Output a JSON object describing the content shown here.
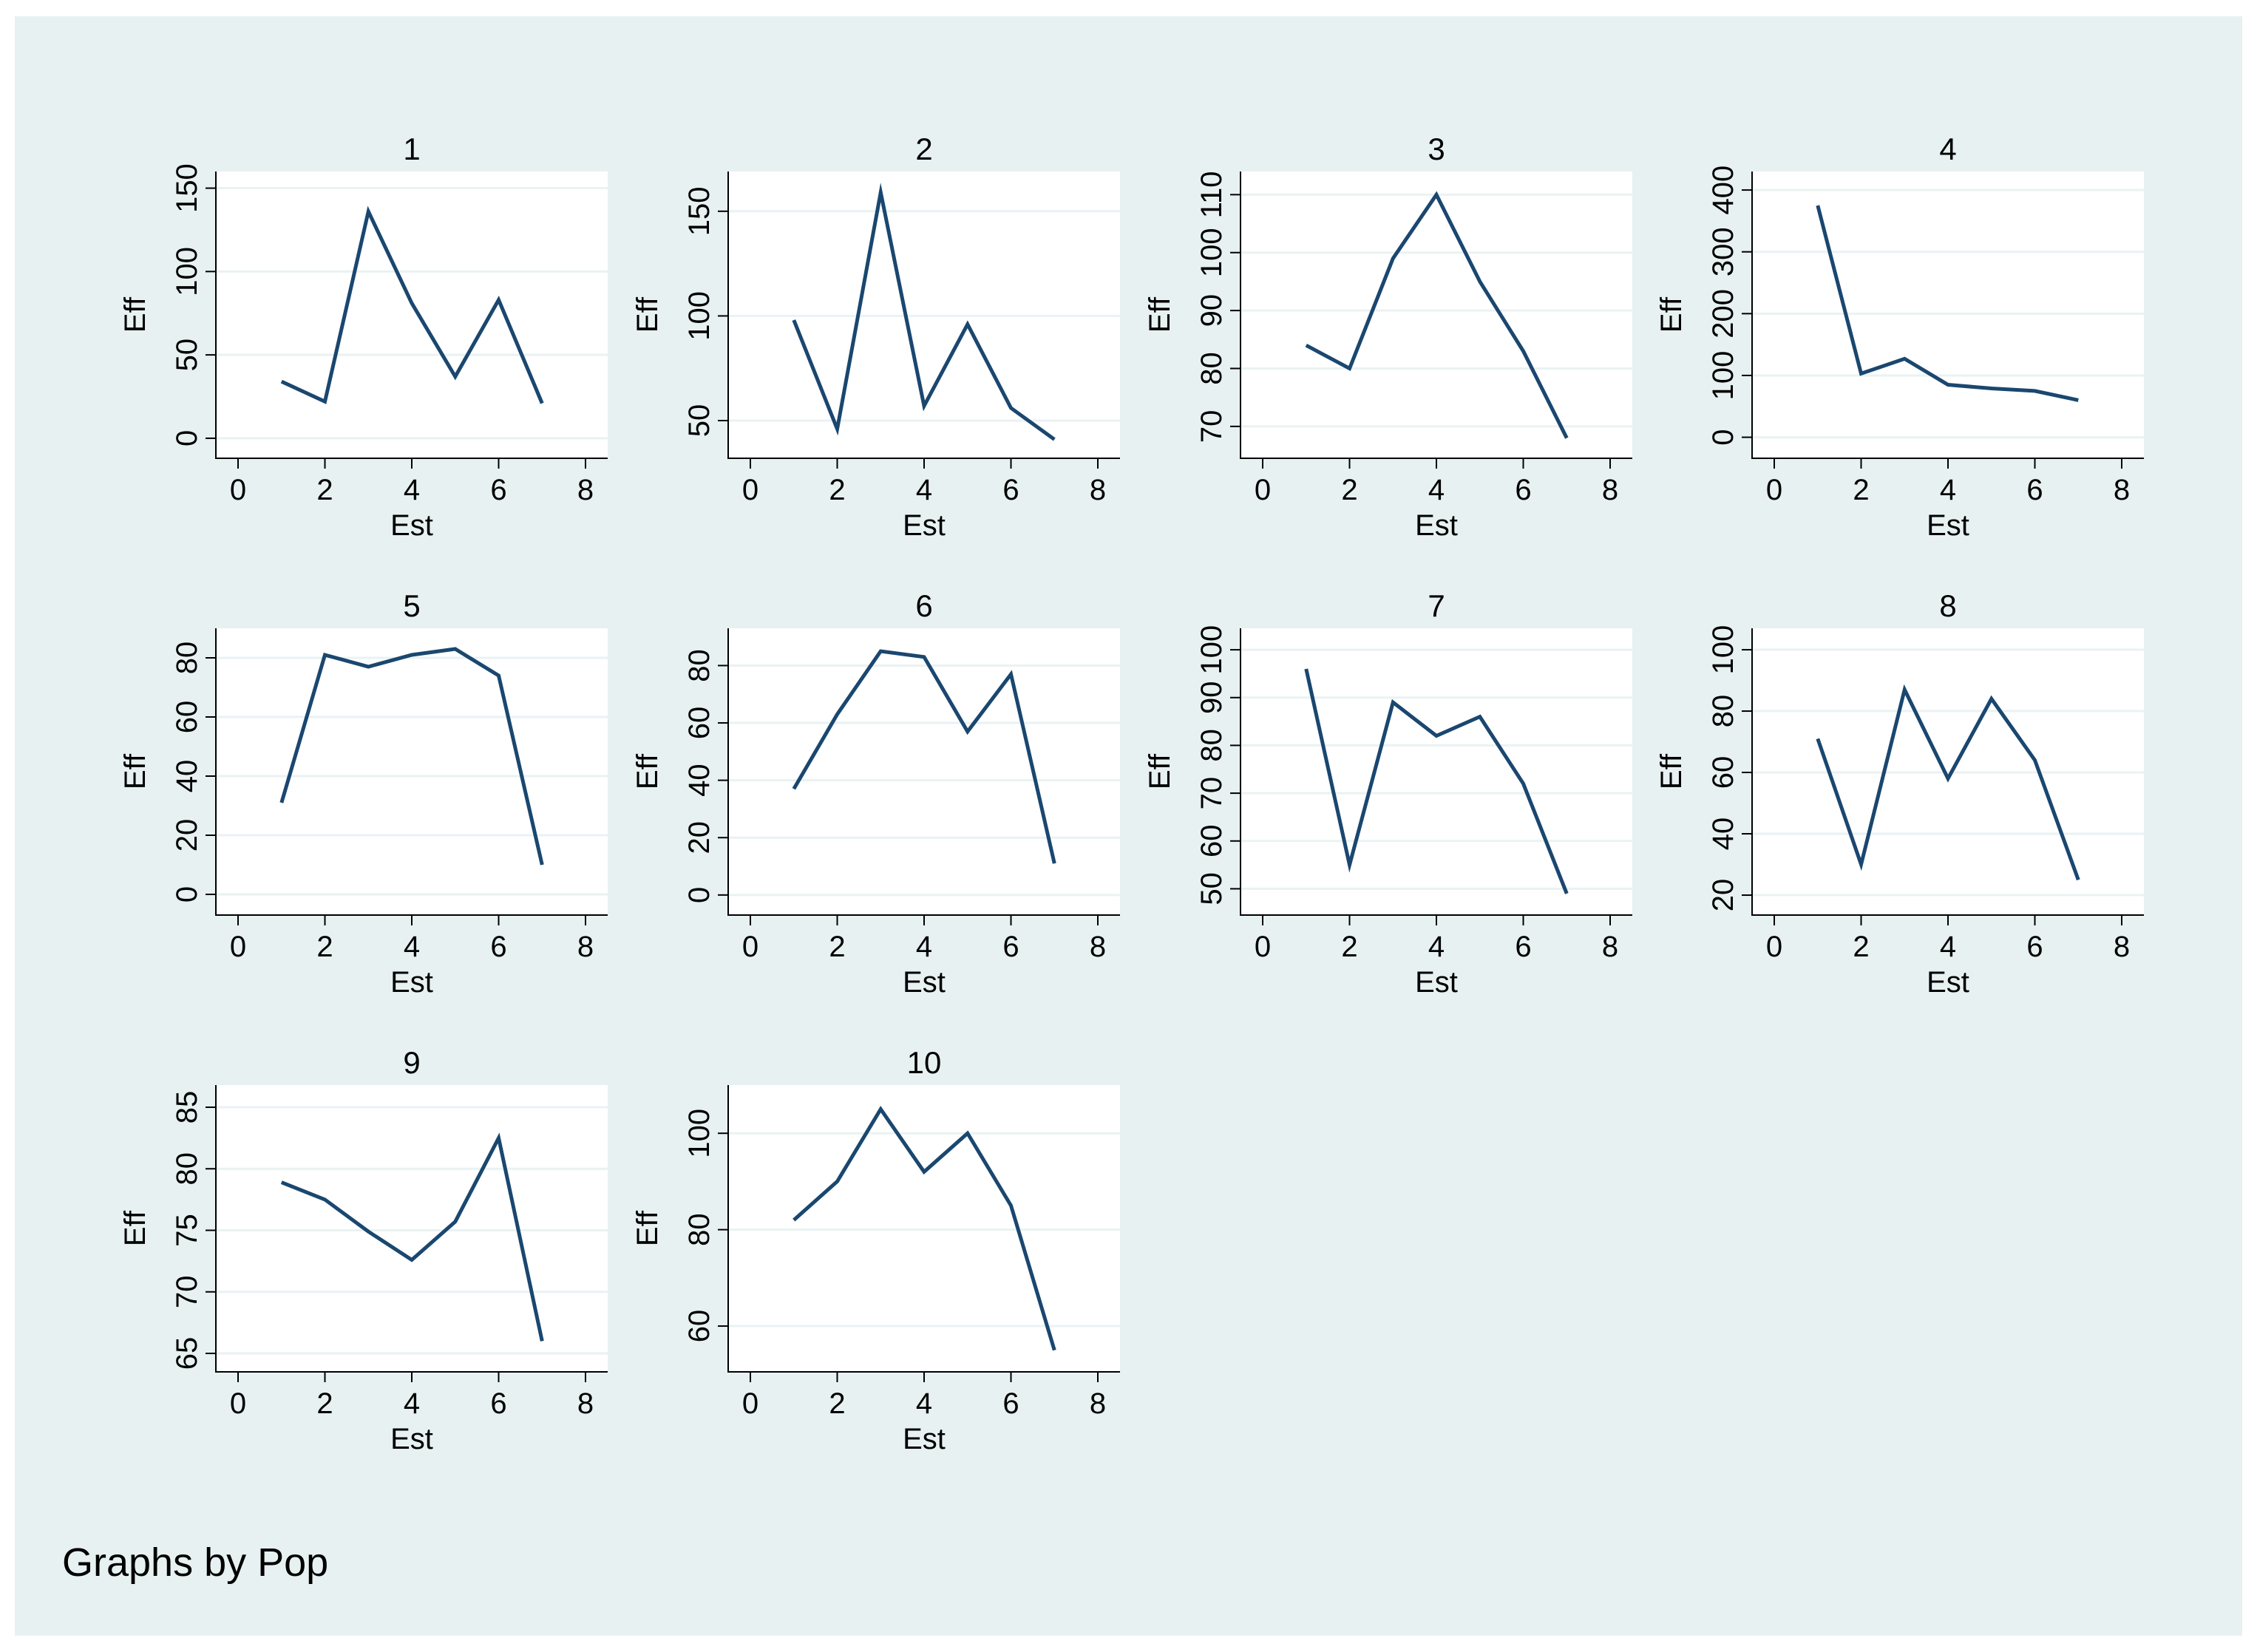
{
  "note": "Graphs by Pop",
  "colors": {
    "background": "#e7f1f1",
    "plot": "#ffffff",
    "line": "#1a476f",
    "grid": "#eaf2f3"
  },
  "chart_data": [
    {
      "type": "line",
      "title": "1",
      "xlabel": "Est",
      "ylabel": "Eff",
      "xlim": [
        0,
        8
      ],
      "xticks": [
        0,
        2,
        4,
        6,
        8
      ],
      "ylim": [
        -12,
        160
      ],
      "yticks": [
        0,
        50,
        100,
        150
      ],
      "x": [
        1,
        2,
        3,
        4,
        5,
        6,
        7
      ],
      "y": [
        34,
        22,
        136,
        81,
        37,
        83,
        21
      ]
    },
    {
      "type": "line",
      "title": "2",
      "xlabel": "Est",
      "ylabel": "Eff",
      "xlim": [
        0,
        8
      ],
      "xticks": [
        0,
        2,
        4,
        6,
        8
      ],
      "ylim": [
        32,
        169
      ],
      "yticks": [
        50,
        100,
        150
      ],
      "x": [
        1,
        2,
        3,
        4,
        5,
        6,
        7
      ],
      "y": [
        98,
        46,
        159,
        57,
        96,
        56,
        41
      ]
    },
    {
      "type": "line",
      "title": "3",
      "xlabel": "Est",
      "ylabel": "Eff",
      "xlim": [
        0,
        8
      ],
      "xticks": [
        0,
        2,
        4,
        6,
        8
      ],
      "ylim": [
        64.5,
        114
      ],
      "yticks": [
        70,
        80,
        90,
        100,
        110
      ],
      "x": [
        1,
        2,
        3,
        4,
        5,
        6,
        7
      ],
      "y": [
        84,
        80,
        99,
        110,
        95,
        83,
        68
      ]
    },
    {
      "type": "line",
      "title": "4",
      "xlabel": "Est",
      "ylabel": "Eff",
      "xlim": [
        0,
        8
      ],
      "xticks": [
        0,
        2,
        4,
        6,
        8
      ],
      "ylim": [
        -34,
        430
      ],
      "yticks": [
        0,
        100,
        200,
        300,
        400
      ],
      "x": [
        1,
        2,
        3,
        4,
        5,
        6,
        7
      ],
      "y": [
        375,
        103,
        127,
        85,
        79,
        75,
        60
      ]
    },
    {
      "type": "line",
      "title": "5",
      "xlabel": "Est",
      "ylabel": "Eff",
      "xlim": [
        0,
        8
      ],
      "xticks": [
        0,
        2,
        4,
        6,
        8
      ],
      "ylim": [
        -7,
        90
      ],
      "yticks": [
        0,
        20,
        40,
        60,
        80
      ],
      "x": [
        1,
        2,
        3,
        4,
        5,
        6,
        7
      ],
      "y": [
        31,
        81,
        77,
        81,
        83,
        74,
        10
      ]
    },
    {
      "type": "line",
      "title": "6",
      "xlabel": "Est",
      "ylabel": "Eff",
      "xlim": [
        0,
        8
      ],
      "xticks": [
        0,
        2,
        4,
        6,
        8
      ],
      "ylim": [
        -7,
        93
      ],
      "yticks": [
        0,
        20,
        40,
        60,
        80
      ],
      "x": [
        1,
        2,
        3,
        4,
        5,
        6,
        7
      ],
      "y": [
        37,
        63,
        85,
        83,
        57,
        77,
        11
      ]
    },
    {
      "type": "line",
      "title": "7",
      "xlabel": "Est",
      "ylabel": "Eff",
      "xlim": [
        0,
        8
      ],
      "xticks": [
        0,
        2,
        4,
        6,
        8
      ],
      "ylim": [
        44.5,
        104.5
      ],
      "yticks": [
        50,
        60,
        70,
        80,
        90,
        100
      ],
      "x": [
        1,
        2,
        3,
        4,
        5,
        6,
        7
      ],
      "y": [
        96,
        55,
        89,
        82,
        86,
        72,
        49
      ]
    },
    {
      "type": "line",
      "title": "8",
      "xlabel": "Est",
      "ylabel": "Eff",
      "xlim": [
        0,
        8
      ],
      "xticks": [
        0,
        2,
        4,
        6,
        8
      ],
      "ylim": [
        13.5,
        107
      ],
      "yticks": [
        20,
        40,
        60,
        80,
        100
      ],
      "x": [
        1,
        2,
        3,
        4,
        5,
        6,
        7
      ],
      "y": [
        71,
        30,
        87,
        58,
        84,
        64,
        25
      ]
    },
    {
      "type": "line",
      "title": "9",
      "xlabel": "Est",
      "ylabel": "Eff",
      "xlim": [
        0,
        8
      ],
      "xticks": [
        0,
        2,
        4,
        6,
        8
      ],
      "ylim": [
        63.5,
        86.8
      ],
      "yticks": [
        65,
        70,
        75,
        80,
        85
      ],
      "x": [
        1,
        2,
        3,
        4,
        5,
        6,
        7
      ],
      "y": [
        78.9,
        77.5,
        74.9,
        72.6,
        75.7,
        82.5,
        66
      ]
    },
    {
      "type": "line",
      "title": "10",
      "xlabel": "Est",
      "ylabel": "Eff",
      "xlim": [
        0,
        8
      ],
      "xticks": [
        0,
        2,
        4,
        6,
        8
      ],
      "ylim": [
        50.5,
        110
      ],
      "yticks": [
        60,
        80,
        100
      ],
      "x": [
        1,
        2,
        3,
        4,
        5,
        6,
        7
      ],
      "y": [
        82,
        90,
        105,
        92,
        100,
        85,
        55
      ]
    }
  ]
}
